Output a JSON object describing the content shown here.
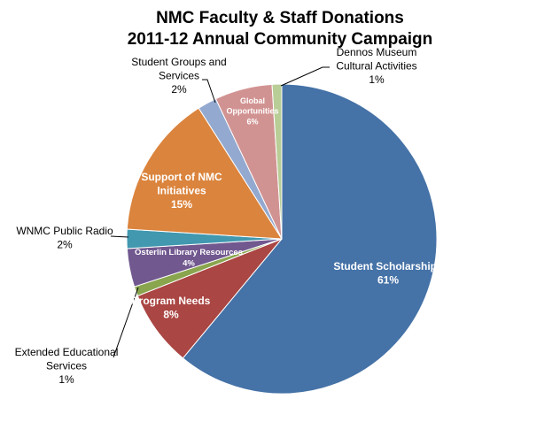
{
  "chart_data": {
    "type": "pie",
    "title_lines": [
      "NMC Faculty & Staff Donations",
      "2011-12 Annual Community Campaign"
    ],
    "slices": [
      {
        "label_lines": [
          "Student Scholarships"
        ],
        "pct_text": "61%",
        "value": 61,
        "color": "#4572A7"
      },
      {
        "label_lines": [
          "Program Needs"
        ],
        "pct_text": "8%",
        "value": 8,
        "color": "#AA4643"
      },
      {
        "label_lines": [
          "Extended Educational",
          "Services"
        ],
        "pct_text": "1%",
        "value": 1,
        "color": "#89A54E"
      },
      {
        "label_lines": [
          "Osterlin Library Resources"
        ],
        "pct_text": "4%",
        "value": 4,
        "color": "#71588F"
      },
      {
        "label_lines": [
          "WNMC Public Radio"
        ],
        "pct_text": "2%",
        "value": 2,
        "color": "#4198AF"
      },
      {
        "label_lines": [
          "Support of NMC",
          "Initiatives"
        ],
        "pct_text": "15%",
        "value": 15,
        "color": "#DB843D"
      },
      {
        "label_lines": [
          "Student Groups and",
          "Services"
        ],
        "pct_text": "2%",
        "value": 2,
        "color": "#93A9CF"
      },
      {
        "label_lines": [
          "Global",
          "Opportunities"
        ],
        "pct_text": "6%",
        "value": 6,
        "color": "#D19392"
      },
      {
        "label_lines": [
          "Dennos Museum",
          "Cultural Activities"
        ],
        "pct_text": "1%",
        "value": 1,
        "color": "#B9CD96"
      }
    ]
  }
}
